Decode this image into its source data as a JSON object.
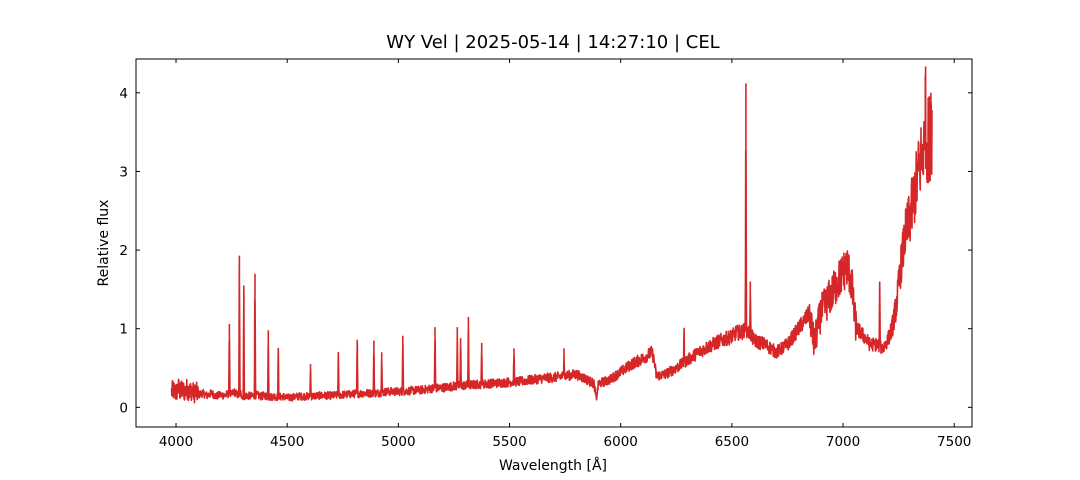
{
  "chart_data": {
    "type": "line",
    "title": "WY Vel | 2025-05-14 | 14:27:10 | CEL",
    "xlabel": "Wavelength [Å]",
    "ylabel": "Relative flux",
    "xlim": [
      3820,
      7580
    ],
    "ylim": [
      -0.25,
      4.43
    ],
    "xticks": [
      4000,
      4500,
      5000,
      5500,
      6000,
      6500,
      7000,
      7500
    ],
    "yticks": [
      0,
      1,
      2,
      3,
      4
    ],
    "grid": false,
    "legend": "none",
    "line_color": "#d62728",
    "series": [
      {
        "x": [
          3980,
          3990,
          4000,
          4010,
          4020,
          4030,
          4040,
          4050,
          4060,
          4070,
          4080,
          4090,
          4100,
          4120,
          4140,
          4160,
          4180,
          4200,
          4220,
          4240,
          4250,
          4260,
          4280,
          4290,
          4300,
          4320,
          4340,
          4360,
          4380,
          4400,
          4420,
          4440,
          4460,
          4480,
          4500,
          4550,
          4600,
          4650,
          4700,
          4750,
          4800,
          4850,
          4900,
          4950,
          5000,
          5050,
          5100,
          5150,
          5200,
          5250,
          5300,
          5350,
          5400,
          5450,
          5500,
          5550,
          5600,
          5650,
          5700,
          5750,
          5800,
          5850,
          5880,
          5890,
          5900,
          5950,
          6000,
          6050,
          6100,
          6120,
          6140,
          6150,
          6160,
          6200,
          6250,
          6300,
          6350,
          6400,
          6450,
          6500,
          6520,
          6540,
          6560,
          6580,
          6600,
          6650,
          6700,
          6750,
          6800,
          6850,
          6870,
          6900,
          6950,
          6980,
          7000,
          7020,
          7040,
          7050,
          7060,
          7080,
          7100,
          7120,
          7150,
          7180,
          7200,
          7220,
          7240,
          7260,
          7280,
          7300,
          7320,
          7340,
          7360,
          7380,
          7400
        ],
        "y": [
          0.2,
          0.22,
          0.18,
          0.25,
          0.2,
          0.22,
          0.2,
          0.24,
          0.2,
          0.22,
          0.18,
          0.2,
          0.16,
          0.18,
          0.15,
          0.18,
          0.14,
          0.16,
          0.15,
          0.18,
          0.16,
          0.2,
          0.15,
          0.18,
          0.14,
          0.15,
          0.14,
          0.16,
          0.14,
          0.15,
          0.13,
          0.14,
          0.13,
          0.14,
          0.12,
          0.14,
          0.14,
          0.15,
          0.15,
          0.16,
          0.17,
          0.18,
          0.18,
          0.2,
          0.2,
          0.21,
          0.22,
          0.24,
          0.25,
          0.27,
          0.28,
          0.29,
          0.3,
          0.31,
          0.32,
          0.33,
          0.35,
          0.37,
          0.38,
          0.4,
          0.42,
          0.35,
          0.3,
          0.1,
          0.3,
          0.35,
          0.45,
          0.55,
          0.62,
          0.66,
          0.7,
          0.6,
          0.4,
          0.42,
          0.5,
          0.6,
          0.7,
          0.78,
          0.85,
          0.9,
          0.95,
          0.95,
          0.98,
          0.95,
          0.85,
          0.8,
          0.7,
          0.8,
          1.0,
          1.2,
          0.8,
          1.2,
          1.45,
          1.62,
          1.72,
          1.8,
          1.55,
          1.2,
          1.0,
          0.95,
          0.88,
          0.8,
          0.8,
          0.75,
          0.85,
          1.0,
          1.3,
          1.8,
          2.2,
          2.4,
          2.7,
          3.0,
          3.3,
          3.4,
          3.5
        ]
      }
    ],
    "emission_lines": [
      {
        "x": 4240,
        "y": 1.06
      },
      {
        "x": 4285,
        "y": 1.93
      },
      {
        "x": 4305,
        "y": 1.55
      },
      {
        "x": 4355,
        "y": 1.7
      },
      {
        "x": 4415,
        "y": 0.98
      },
      {
        "x": 4460,
        "y": 0.72
      },
      {
        "x": 4605,
        "y": 0.55
      },
      {
        "x": 4730,
        "y": 0.68
      },
      {
        "x": 4815,
        "y": 0.86
      },
      {
        "x": 4890,
        "y": 0.85
      },
      {
        "x": 4925,
        "y": 0.7
      },
      {
        "x": 5020,
        "y": 0.91
      },
      {
        "x": 5165,
        "y": 1.02
      },
      {
        "x": 5265,
        "y": 1.02
      },
      {
        "x": 5280,
        "y": 0.88
      },
      {
        "x": 5315,
        "y": 1.15
      },
      {
        "x": 5375,
        "y": 0.82
      },
      {
        "x": 5520,
        "y": 0.75
      },
      {
        "x": 5745,
        "y": 0.75
      },
      {
        "x": 6285,
        "y": 0.97
      },
      {
        "x": 6563,
        "y": 4.12
      },
      {
        "x": 6583,
        "y": 1.6
      },
      {
        "x": 7165,
        "y": 1.57
      },
      {
        "x": 7370,
        "y": 4.22
      },
      {
        "x": 7395,
        "y": 4.0
      }
    ]
  }
}
